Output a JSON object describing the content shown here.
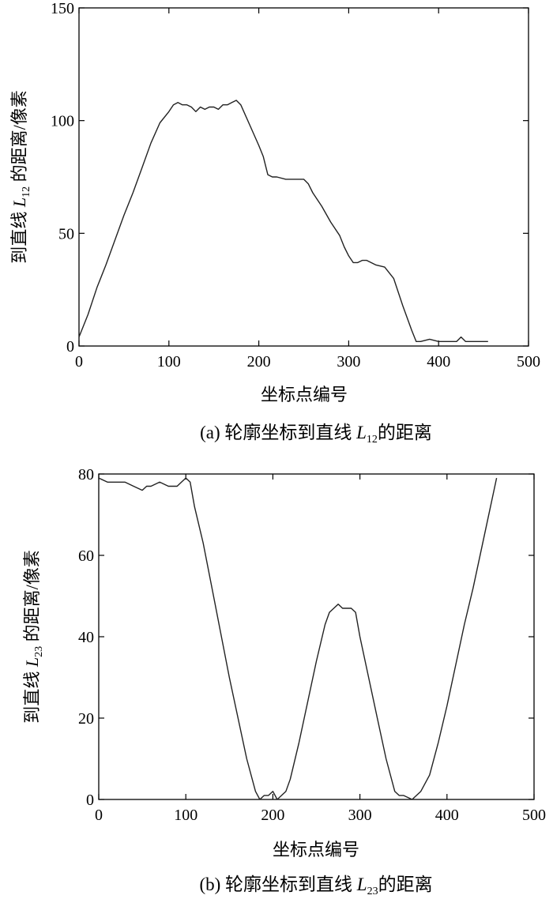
{
  "chart_data": [
    {
      "type": "line",
      "panel_label": "(a)",
      "caption_prefix": "(a) 轮廓坐标到直线 ",
      "caption_var": "L",
      "caption_sub": "12",
      "caption_suffix": "的距离",
      "xlabel": "坐标点编号",
      "ylabel_prefix": "到直线 ",
      "ylabel_var": "L",
      "ylabel_sub": "12",
      "ylabel_suffix": " 的距离/像素",
      "xlim": [
        0,
        500
      ],
      "ylim": [
        0,
        150
      ],
      "xticks": [
        0,
        100,
        200,
        300,
        400,
        500
      ],
      "yticks": [
        0,
        50,
        100,
        150
      ],
      "grid": false,
      "series": [
        {
          "x": [
            0,
            10,
            20,
            30,
            40,
            50,
            60,
            70,
            80,
            90,
            100,
            105,
            110,
            115,
            120,
            125,
            130,
            135,
            140,
            145,
            150,
            155,
            160,
            165,
            170,
            175,
            180,
            190,
            200,
            205,
            210,
            215,
            220,
            230,
            240,
            250,
            255,
            260,
            270,
            280,
            290,
            295,
            300,
            305,
            310,
            315,
            320,
            330,
            340,
            350,
            360,
            370,
            375,
            380,
            390,
            400,
            410,
            420,
            425,
            430,
            440,
            450,
            455
          ],
          "values": [
            4,
            14,
            26,
            36,
            47,
            58,
            68,
            79,
            90,
            99,
            104,
            107,
            108,
            107,
            107,
            106,
            104,
            106,
            105,
            106,
            106,
            105,
            107,
            107,
            108,
            109,
            107,
            98,
            89,
            84,
            76,
            75,
            75,
            74,
            74,
            74,
            72,
            68,
            62,
            55,
            49,
            44,
            40,
            37,
            37,
            38,
            38,
            36,
            35,
            30,
            18,
            7,
            2,
            2,
            3,
            2,
            2,
            2,
            4,
            2,
            2,
            2,
            2
          ]
        }
      ]
    },
    {
      "type": "line",
      "panel_label": "(b)",
      "caption_prefix": "(b) 轮廓坐标到直线 ",
      "caption_var": "L",
      "caption_sub": "23",
      "caption_suffix": "的距离",
      "xlabel": "坐标点编号",
      "ylabel_prefix": "到直线 ",
      "ylabel_var": "L",
      "ylabel_sub": "23",
      "ylabel_suffix": " 的距离/像素",
      "xlim": [
        0,
        500
      ],
      "ylim": [
        0,
        80
      ],
      "xticks": [
        0,
        100,
        200,
        300,
        400,
        500
      ],
      "yticks": [
        0,
        20,
        40,
        60,
        80
      ],
      "grid": false,
      "series": [
        {
          "x": [
            0,
            10,
            20,
            30,
            40,
            50,
            55,
            60,
            70,
            80,
            90,
            95,
            100,
            105,
            110,
            120,
            130,
            140,
            150,
            160,
            170,
            180,
            185,
            190,
            195,
            200,
            205,
            210,
            215,
            220,
            230,
            240,
            250,
            260,
            265,
            270,
            275,
            280,
            285,
            290,
            295,
            300,
            310,
            320,
            330,
            340,
            345,
            350,
            360,
            365,
            370,
            380,
            390,
            400,
            410,
            420,
            430,
            440,
            450,
            457
          ],
          "values": [
            79,
            78,
            78,
            78,
            77,
            76,
            77,
            77,
            78,
            77,
            77,
            78,
            79,
            78,
            72,
            63,
            52,
            41,
            30,
            20,
            10,
            2,
            0,
            1,
            1,
            2,
            0,
            1,
            2,
            5,
            14,
            24,
            34,
            43,
            46,
            47,
            48,
            47,
            47,
            47,
            46,
            40,
            30,
            20,
            10,
            2,
            1,
            1,
            0,
            1,
            2,
            6,
            14,
            23,
            33,
            43,
            52,
            62,
            72,
            79
          ]
        }
      ]
    }
  ]
}
